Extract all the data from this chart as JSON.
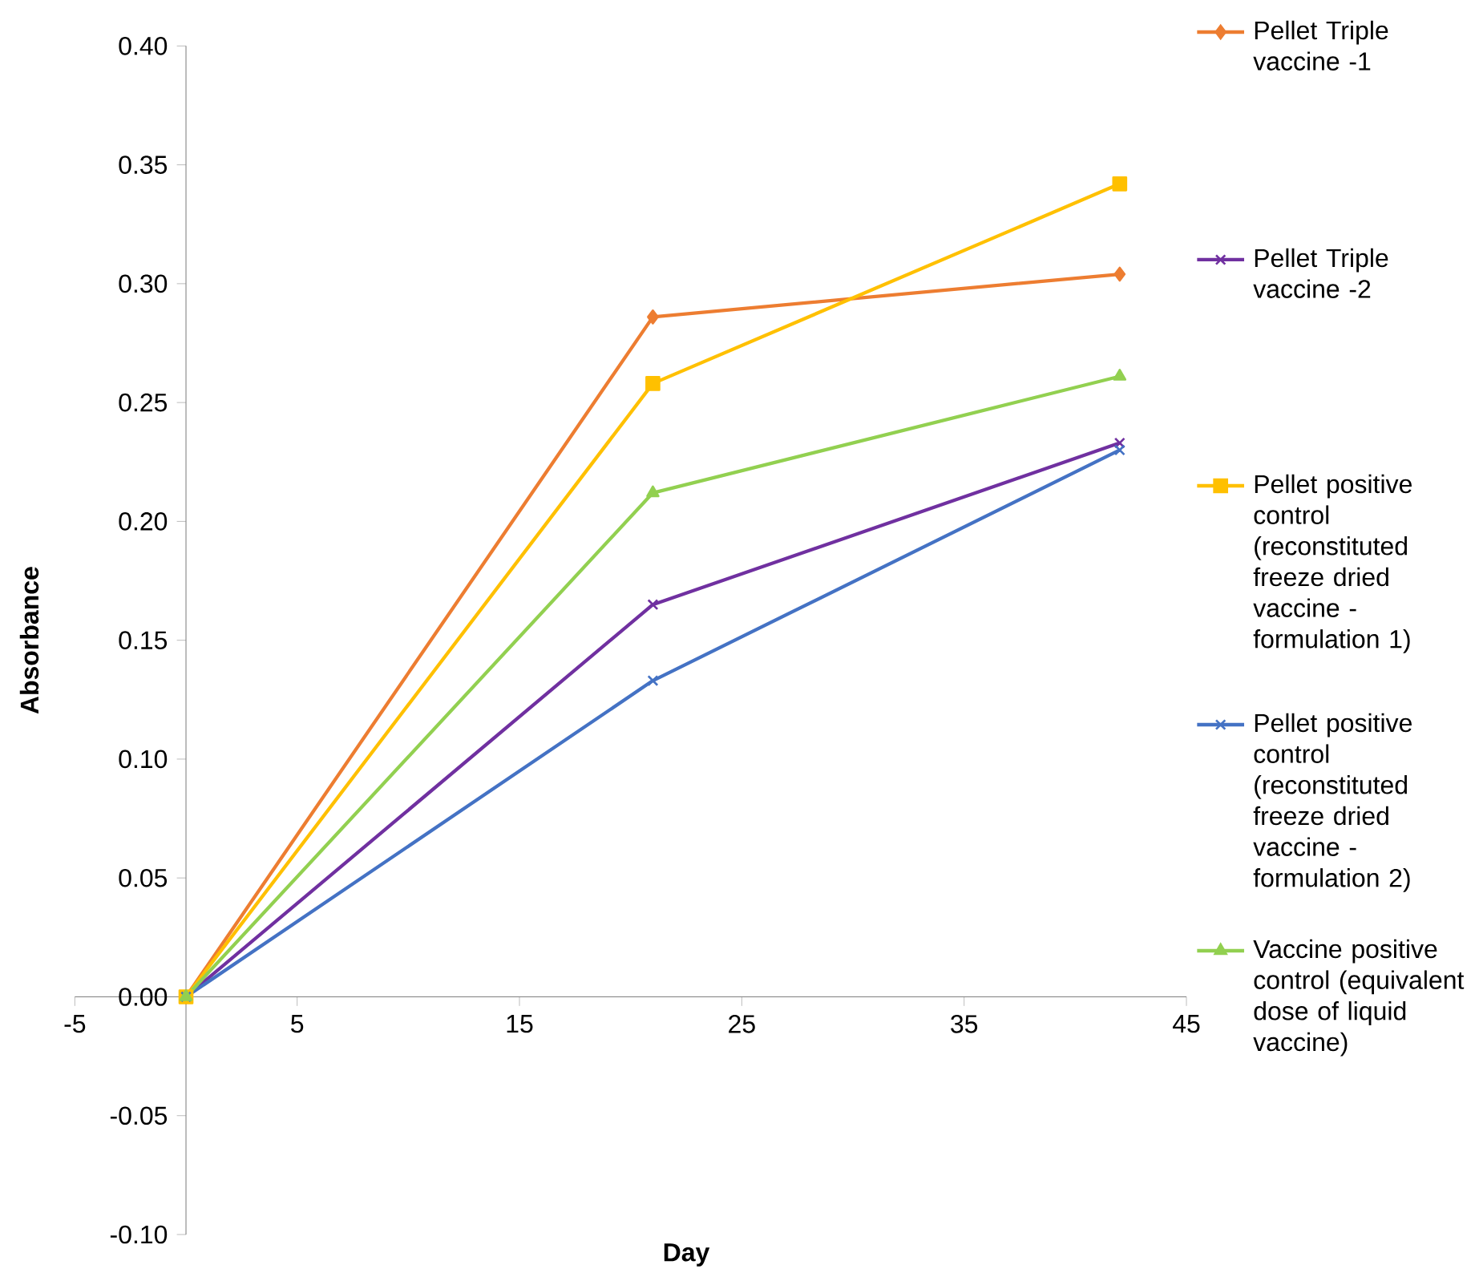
{
  "chart_data": {
    "type": "line",
    "xlabel": "Day",
    "ylabel": "Absorbance",
    "x": [
      0,
      21,
      42
    ],
    "xlim": [
      -5,
      45
    ],
    "xticks": [
      -5,
      5,
      15,
      25,
      35,
      45
    ],
    "ylim": [
      -0.1,
      0.4
    ],
    "yticks": [
      {
        "value": -0.1,
        "label": "-0.10"
      },
      {
        "value": -0.05,
        "label": "-0.05"
      },
      {
        "value": 0,
        "label": "0.00"
      },
      {
        "value": 0.05,
        "label": "0.05"
      },
      {
        "value": 0.1,
        "label": "0.10"
      },
      {
        "value": 0.15,
        "label": "0.15"
      },
      {
        "value": 0.2,
        "label": "0.20"
      },
      {
        "value": 0.25,
        "label": "0.25"
      },
      {
        "value": 0.3,
        "label": "0.30"
      },
      {
        "value": 0.35,
        "label": "0.35"
      },
      {
        "value": 0.4,
        "label": "0.40"
      }
    ],
    "legend": "right",
    "series": [
      {
        "name": "Pellet Triple vaccine -1",
        "color": "#ed7d31",
        "marker": "diamond",
        "values": [
          0,
          0.286,
          0.304
        ]
      },
      {
        "name": "Pellet Triple vaccine -2",
        "color": "#7030a0",
        "marker": "cross",
        "values": [
          0,
          0.165,
          0.233
        ]
      },
      {
        "name": "Pellet positive control (reconstituted freeze dried vaccine - formulation 1)",
        "color": "#ffc000",
        "marker": "square",
        "values": [
          0,
          0.258,
          0.342
        ]
      },
      {
        "name": "Pellet positive control (reconstituted freeze dried vaccine - formulation 2)",
        "color": "#4472c4",
        "marker": "cross",
        "values": [
          0,
          0.133,
          0.23
        ]
      },
      {
        "name": "Vaccine positive control (equivalent dose of liquid vaccine)",
        "color": "#92d050",
        "marker": "triangle",
        "values": [
          0,
          0.212,
          0.261
        ]
      }
    ]
  }
}
